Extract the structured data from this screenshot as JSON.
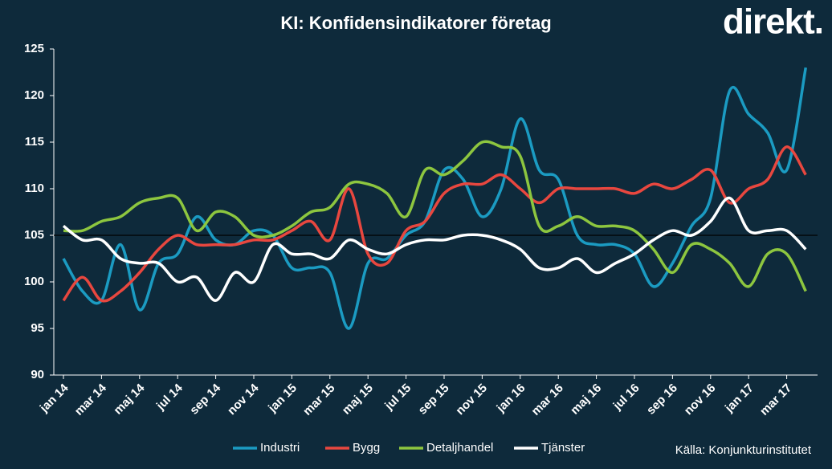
{
  "chart_data": {
    "type": "line",
    "title": "KI: Konfidensindikatorer företag",
    "logo": "direkt.",
    "source": "Källa: Konjunkturinstitutet",
    "categories": [
      "jan 14",
      null,
      "mar 14",
      null,
      "maj 14",
      null,
      "jul 14",
      null,
      "sep 14",
      null,
      "nov 14",
      null,
      "jan 15",
      null,
      "mar 15",
      null,
      "maj 15",
      null,
      "jul 15",
      null,
      "sep 15",
      null,
      "nov 15",
      null,
      "jan 16",
      null,
      "mar 16",
      null,
      "maj 16",
      null,
      "jul 16",
      null,
      "sep 16",
      null,
      "nov 16",
      null,
      "jan 17",
      null,
      "mar 17",
      null
    ],
    "series": [
      {
        "name": "Industri",
        "color": "#1b9bc2",
        "values": [
          102.5,
          99,
          98,
          104,
          97,
          102,
          103,
          107,
          104.5,
          104,
          105.5,
          105,
          101.5,
          101.5,
          101,
          95,
          102,
          102.5,
          105,
          106.5,
          112,
          111,
          107,
          110,
          117.5,
          112,
          111,
          105,
          104,
          104,
          103,
          99.5,
          102,
          106,
          109,
          120.5,
          118,
          116,
          112,
          123
        ]
      },
      {
        "name": "Bygg",
        "color": "#e8473f",
        "values": [
          98,
          100.5,
          98,
          99,
          101,
          103.5,
          105,
          104,
          104,
          104,
          104.5,
          104.5,
          105.5,
          106.5,
          104.5,
          110,
          103,
          102,
          105.5,
          106.5,
          109.5,
          110.5,
          110.5,
          111.5,
          110,
          108.5,
          110,
          110,
          110,
          110,
          109.5,
          110.5,
          110,
          111,
          112,
          108.5,
          110,
          111,
          114.5,
          111.5
        ]
      },
      {
        "name": "Detaljhandel",
        "color": "#8dc63f",
        "values": [
          105.5,
          105.5,
          106.5,
          107,
          108.5,
          109,
          109,
          105.5,
          107.5,
          107,
          105,
          105,
          106,
          107.5,
          108,
          110.5,
          110.5,
          109.5,
          107,
          112,
          111.5,
          113,
          115,
          114.5,
          113.5,
          106,
          106,
          107,
          106,
          106,
          105.5,
          103.5,
          101,
          104,
          103.5,
          102,
          99.5,
          103,
          103,
          99
        ]
      },
      {
        "name": "Tjänster",
        "color": "#ffffff",
        "values": [
          106,
          104.5,
          104.5,
          102.5,
          102,
          102,
          100,
          100.5,
          98,
          101,
          100,
          104,
          103,
          103,
          102.5,
          104.5,
          103.5,
          103,
          104,
          104.5,
          104.5,
          105,
          105,
          104.5,
          103.5,
          101.5,
          101.5,
          102.5,
          101,
          102,
          103,
          104.5,
          105.5,
          105,
          106.5,
          109,
          105.5,
          105.5,
          105.5,
          103.5
        ]
      }
    ],
    "reference_line": 105,
    "ylim": [
      90,
      125
    ],
    "yticks": [
      90,
      95,
      100,
      105,
      110,
      115,
      120,
      125
    ]
  }
}
